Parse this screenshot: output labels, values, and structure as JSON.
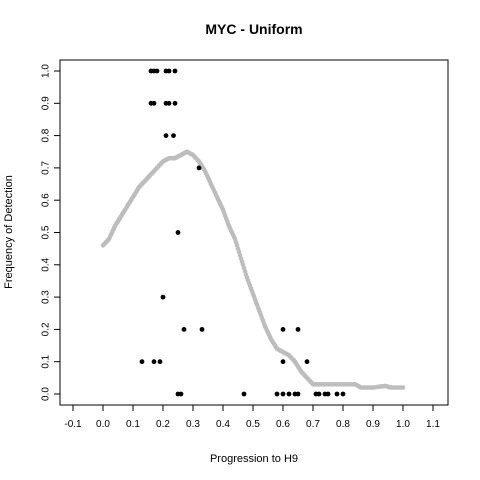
{
  "chart_data": {
    "type": "scatter",
    "title": "MYC - Uniform",
    "xlabel": "Progression to H9",
    "ylabel": "Frequency of Detection",
    "xlim": [
      -0.1,
      1.1
    ],
    "ylim": [
      0.0,
      1.0
    ],
    "x_ticks": [
      "-0.1",
      "0.0",
      "0.1",
      "0.2",
      "0.3",
      "0.4",
      "0.5",
      "0.6",
      "0.7",
      "0.8",
      "0.9",
      "1.0",
      "1.1"
    ],
    "y_ticks": [
      "0.0",
      "0.1",
      "0.2",
      "0.3",
      "0.4",
      "0.5",
      "0.6",
      "0.7",
      "0.8",
      "0.9",
      "1.0"
    ],
    "grid": false,
    "colors": {
      "points": "#000000",
      "smooth": "#bdbdbd"
    },
    "series": [
      {
        "style": "points",
        "points": [
          {
            "x": 0.16,
            "y": 1.0
          },
          {
            "x": 0.17,
            "y": 1.0
          },
          {
            "x": 0.18,
            "y": 1.0
          },
          {
            "x": 0.21,
            "y": 1.0
          },
          {
            "x": 0.22,
            "y": 1.0
          },
          {
            "x": 0.24,
            "y": 1.0
          },
          {
            "x": 0.16,
            "y": 0.9
          },
          {
            "x": 0.17,
            "y": 0.9
          },
          {
            "x": 0.21,
            "y": 0.9
          },
          {
            "x": 0.22,
            "y": 0.9
          },
          {
            "x": 0.24,
            "y": 0.9
          },
          {
            "x": 0.21,
            "y": 0.8
          },
          {
            "x": 0.235,
            "y": 0.8
          },
          {
            "x": 0.32,
            "y": 0.7
          },
          {
            "x": 0.25,
            "y": 0.5
          },
          {
            "x": 0.2,
            "y": 0.3
          },
          {
            "x": 0.27,
            "y": 0.2
          },
          {
            "x": 0.33,
            "y": 0.2
          },
          {
            "x": 0.6,
            "y": 0.2
          },
          {
            "x": 0.65,
            "y": 0.2
          },
          {
            "x": 0.13,
            "y": 0.1
          },
          {
            "x": 0.17,
            "y": 0.1
          },
          {
            "x": 0.19,
            "y": 0.1
          },
          {
            "x": 0.6,
            "y": 0.1
          },
          {
            "x": 0.68,
            "y": 0.1
          },
          {
            "x": 0.25,
            "y": 0.0
          },
          {
            "x": 0.26,
            "y": 0.0
          },
          {
            "x": 0.47,
            "y": 0.0
          },
          {
            "x": 0.58,
            "y": 0.0
          },
          {
            "x": 0.6,
            "y": 0.0
          },
          {
            "x": 0.62,
            "y": 0.0
          },
          {
            "x": 0.64,
            "y": 0.0
          },
          {
            "x": 0.65,
            "y": 0.0
          },
          {
            "x": 0.71,
            "y": 0.0
          },
          {
            "x": 0.72,
            "y": 0.0
          },
          {
            "x": 0.74,
            "y": 0.0
          },
          {
            "x": 0.75,
            "y": 0.0
          },
          {
            "x": 0.78,
            "y": 0.0
          },
          {
            "x": 0.8,
            "y": 0.0
          }
        ]
      },
      {
        "style": "smooth",
        "points": [
          {
            "x": 0.0,
            "y": 0.46
          },
          {
            "x": 0.02,
            "y": 0.48
          },
          {
            "x": 0.04,
            "y": 0.52
          },
          {
            "x": 0.06,
            "y": 0.55
          },
          {
            "x": 0.08,
            "y": 0.58
          },
          {
            "x": 0.1,
            "y": 0.61
          },
          {
            "x": 0.12,
            "y": 0.64
          },
          {
            "x": 0.14,
            "y": 0.66
          },
          {
            "x": 0.16,
            "y": 0.68
          },
          {
            "x": 0.18,
            "y": 0.7
          },
          {
            "x": 0.2,
            "y": 0.72
          },
          {
            "x": 0.22,
            "y": 0.73
          },
          {
            "x": 0.24,
            "y": 0.73
          },
          {
            "x": 0.26,
            "y": 0.74
          },
          {
            "x": 0.28,
            "y": 0.75
          },
          {
            "x": 0.3,
            "y": 0.74
          },
          {
            "x": 0.32,
            "y": 0.72
          },
          {
            "x": 0.34,
            "y": 0.69
          },
          {
            "x": 0.36,
            "y": 0.65
          },
          {
            "x": 0.38,
            "y": 0.61
          },
          {
            "x": 0.4,
            "y": 0.57
          },
          {
            "x": 0.42,
            "y": 0.52
          },
          {
            "x": 0.44,
            "y": 0.48
          },
          {
            "x": 0.46,
            "y": 0.42
          },
          {
            "x": 0.48,
            "y": 0.36
          },
          {
            "x": 0.5,
            "y": 0.31
          },
          {
            "x": 0.52,
            "y": 0.26
          },
          {
            "x": 0.54,
            "y": 0.21
          },
          {
            "x": 0.56,
            "y": 0.17
          },
          {
            "x": 0.58,
            "y": 0.14
          },
          {
            "x": 0.6,
            "y": 0.13
          },
          {
            "x": 0.62,
            "y": 0.12
          },
          {
            "x": 0.64,
            "y": 0.1
          },
          {
            "x": 0.66,
            "y": 0.07
          },
          {
            "x": 0.68,
            "y": 0.05
          },
          {
            "x": 0.7,
            "y": 0.03
          },
          {
            "x": 0.72,
            "y": 0.03
          },
          {
            "x": 0.76,
            "y": 0.03
          },
          {
            "x": 0.8,
            "y": 0.03
          },
          {
            "x": 0.84,
            "y": 0.03
          },
          {
            "x": 0.86,
            "y": 0.02
          },
          {
            "x": 0.9,
            "y": 0.02
          },
          {
            "x": 0.94,
            "y": 0.025
          },
          {
            "x": 0.96,
            "y": 0.02
          },
          {
            "x": 1.0,
            "y": 0.02
          }
        ]
      }
    ]
  }
}
